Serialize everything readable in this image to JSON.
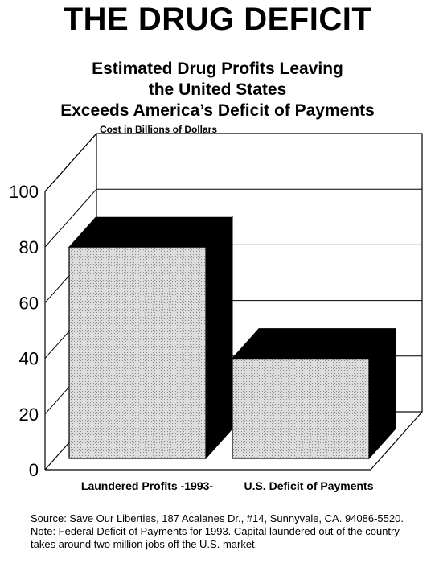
{
  "header": {
    "title": "THE DRUG DEFICIT"
  },
  "chart_data": {
    "type": "bar",
    "title_lines": [
      "Estimated Drug Profits Leaving",
      "the United States",
      "Exceeds America’s Deficit of Payments"
    ],
    "ylabel": "Cost in Billions of Dollars",
    "categories": [
      "Laundered Profits  -1993-",
      "U.S. Deficit of Payments"
    ],
    "values": [
      80,
      40
    ],
    "ylim": [
      0,
      100
    ],
    "yticks": [
      0,
      20,
      40,
      60,
      80,
      100
    ],
    "grid": true,
    "style": "3d",
    "colors": {
      "bar_face": "#d9d9d9",
      "bar_side": "#000000",
      "frame": "#000000"
    }
  },
  "footer": {
    "source": "Source: Save Our Liberties, 187 Acalanes Dr., #14, Sunnyvale, CA. 94086-5520. Note: Federal Deficit of Payments for 1993. Capital laundered out of the country takes around two million jobs off the U.S. market."
  }
}
